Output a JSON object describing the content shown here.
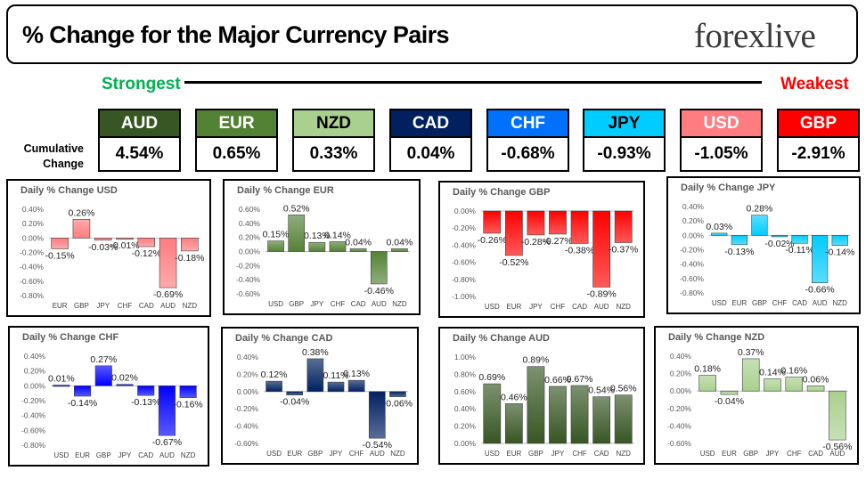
{
  "header": {
    "title": "% Change for the Major Currency Pairs",
    "logo": "forexlive"
  },
  "ranking": {
    "strongest_label": "Strongest",
    "weakest_label": "Weakest",
    "cumulative_label_line1": "Cumulative",
    "cumulative_label_line2": "Change",
    "currencies": [
      {
        "code": "AUD",
        "value": "4.54%",
        "bg": "#375623",
        "fg": "#ffffff"
      },
      {
        "code": "EUR",
        "value": "0.65%",
        "bg": "#548235",
        "fg": "#ffffff"
      },
      {
        "code": "NZD",
        "value": "0.33%",
        "bg": "#a9d08e",
        "fg": "#000000"
      },
      {
        "code": "CAD",
        "value": "0.04%",
        "bg": "#002060",
        "fg": "#ffffff"
      },
      {
        "code": "CHF",
        "value": "-0.68%",
        "bg": "#0070ff",
        "fg": "#ffffff"
      },
      {
        "code": "JPY",
        "value": "-0.93%",
        "bg": "#00ccff",
        "fg": "#000000"
      },
      {
        "code": "USD",
        "value": "-1.05%",
        "bg": "#ff7c80",
        "fg": "#ffffff"
      },
      {
        "code": "GBP",
        "value": "-2.91%",
        "bg": "#ff0000",
        "fg": "#ffffff"
      }
    ]
  },
  "chart_data": [
    {
      "type": "bar",
      "title": "Daily % Change USD",
      "color": "#ff7c80",
      "categories": [
        "EUR",
        "GBP",
        "JPY",
        "CHF",
        "CAD",
        "AUD",
        "NZD"
      ],
      "values": [
        -0.15,
        0.26,
        -0.03,
        -0.01,
        -0.12,
        -0.69,
        -0.18
      ],
      "labels": [
        "-0.15%",
        "0.26%",
        "-0.03%",
        "-0.01%",
        "-0.12%",
        "-0.69%",
        "-0.18%"
      ],
      "ticks": [
        "0.40%",
        "0.20%",
        "0.00%",
        "-0.20%",
        "-0.40%",
        "-0.60%",
        "-0.80%"
      ],
      "ylim": [
        -0.8,
        0.4
      ]
    },
    {
      "type": "bar",
      "title": "Daily % Change EUR",
      "color": "#548235",
      "categories": [
        "USD",
        "GBP",
        "JPY",
        "CHF",
        "CAD",
        "AUD",
        "NZD"
      ],
      "values": [
        0.15,
        0.52,
        0.13,
        0.14,
        0.04,
        -0.46,
        0.04
      ],
      "labels": [
        "0.15%",
        "0.52%",
        "0.13%",
        "0.14%",
        "0.04%",
        "-0.46%",
        "0.04%"
      ],
      "ticks": [
        "0.60%",
        "0.40%",
        "0.20%",
        "0.00%",
        "-0.20%",
        "-0.40%",
        "-0.60%"
      ],
      "ylim": [
        -0.6,
        0.6
      ]
    },
    {
      "type": "bar",
      "title": "Daily % Change GBP",
      "color": "#ff0000",
      "categories": [
        "USD",
        "EUR",
        "JPY",
        "CHF",
        "CAD",
        "AUD",
        "NZD"
      ],
      "values": [
        -0.26,
        -0.52,
        -0.28,
        -0.27,
        -0.38,
        -0.89,
        -0.37
      ],
      "labels": [
        "-0.26%",
        "-0.52%",
        "-0.28%",
        "-0.27%",
        "-0.38%",
        "-0.89%",
        "-0.37%"
      ],
      "ticks": [
        "0.00%",
        "-0.20%",
        "-0.40%",
        "-0.60%",
        "-0.80%",
        "-1.00%"
      ],
      "ylim": [
        -1.0,
        0.0
      ]
    },
    {
      "type": "bar",
      "title": "Daily % Change JPY",
      "color": "#00ccff",
      "categories": [
        "USD",
        "EUR",
        "GBP",
        "CHF",
        "CAD",
        "AUD",
        "NZD"
      ],
      "values": [
        0.03,
        -0.13,
        0.28,
        -0.02,
        -0.11,
        -0.66,
        -0.14
      ],
      "labels": [
        "0.03%",
        "-0.13%",
        "0.28%",
        "-0.02%",
        "-0.11%",
        "-0.66%",
        "-0.14%"
      ],
      "ticks": [
        "0.40%",
        "0.20%",
        "0.00%",
        "-0.20%",
        "-0.40%",
        "-0.60%",
        "-0.80%"
      ],
      "ylim": [
        -0.8,
        0.4
      ]
    },
    {
      "type": "bar",
      "title": "Daily % Change CHF",
      "color": "#0000ff",
      "categories": [
        "USD",
        "EUR",
        "GBP",
        "JPY",
        "CAD",
        "AUD",
        "NZD"
      ],
      "values": [
        0.01,
        -0.14,
        0.27,
        0.02,
        -0.13,
        -0.67,
        -0.16
      ],
      "labels": [
        "0.01%",
        "-0.14%",
        "0.27%",
        "0.02%",
        "-0.13%",
        "-0.67%",
        "-0.16%"
      ],
      "ticks": [
        "0.40%",
        "0.20%",
        "0.00%",
        "-0.20%",
        "-0.40%",
        "-0.60%",
        "-0.80%"
      ],
      "ylim": [
        -0.8,
        0.4
      ]
    },
    {
      "type": "bar",
      "title": "Daily % Change CAD",
      "color": "#002060",
      "categories": [
        "USD",
        "EUR",
        "GBP",
        "JPY",
        "CHF",
        "AUD",
        "NZD"
      ],
      "values": [
        0.12,
        -0.04,
        0.38,
        0.11,
        0.13,
        -0.54,
        -0.06
      ],
      "labels": [
        "0.12%",
        "-0.04%",
        "0.38%",
        "0.11%",
        "0.13%",
        "-0.54%",
        "-0.06%"
      ],
      "ticks": [
        "0.40%",
        "0.20%",
        "0.00%",
        "-0.20%",
        "-0.40%",
        "-0.60%"
      ],
      "ylim": [
        -0.6,
        0.4
      ]
    },
    {
      "type": "bar",
      "title": "Daily % Change AUD",
      "color": "#375623",
      "categories": [
        "USD",
        "EUR",
        "GBP",
        "JPY",
        "CHF",
        "CAD",
        "NZD"
      ],
      "values": [
        0.69,
        0.46,
        0.89,
        0.66,
        0.67,
        0.54,
        0.56
      ],
      "labels": [
        "0.69%",
        "0.46%",
        "0.89%",
        "0.66%",
        "0.67%",
        "0.54%",
        "0.56%"
      ],
      "ticks": [
        "1.00%",
        "0.80%",
        "0.60%",
        "0.40%",
        "0.20%",
        "0.00%"
      ],
      "ylim": [
        0.0,
        1.0
      ]
    },
    {
      "type": "bar",
      "title": "Daily % Change NZD",
      "color": "#a9d08e",
      "categories": [
        "USD",
        "EUR",
        "GBP",
        "JPY",
        "CHF",
        "CAD",
        "AUD"
      ],
      "values": [
        0.18,
        -0.04,
        0.37,
        0.14,
        0.16,
        0.06,
        -0.56
      ],
      "labels": [
        "0.18%",
        "-0.04%",
        "0.37%",
        "0.14%",
        "0.16%",
        "0.06%",
        "-0.56%"
      ],
      "ticks": [
        "0.40%",
        "0.20%",
        "0.00%",
        "-0.20%",
        "-0.40%",
        "-0.60%"
      ],
      "ylim": [
        -0.6,
        0.4
      ]
    }
  ]
}
